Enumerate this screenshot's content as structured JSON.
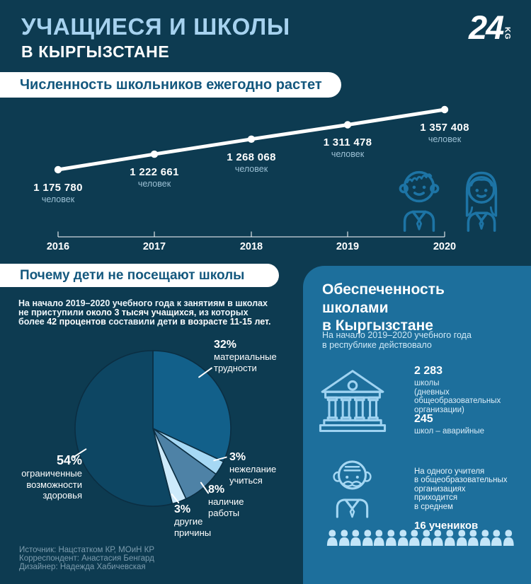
{
  "header": {
    "title": "УЧАЩИЕСЯ И ШКОЛЫ",
    "subtitle": "В КЫРГЫЗСТАНЕ",
    "logo_number": "24",
    "logo_suffix": "KG"
  },
  "growth": {
    "banner": "Численность школьников ежегодно растет"
  },
  "chart_data": [
    {
      "type": "line",
      "title": "Численность школьников ежегодно растет",
      "x": [
        "2016",
        "2017",
        "2018",
        "2019",
        "2020"
      ],
      "values": [
        1175780,
        1222661,
        1268068,
        1311478,
        1357408
      ],
      "point_labels": [
        "1 175 780",
        "1 222 661",
        "1 268 068",
        "1 311 478",
        "1 357 408"
      ],
      "unit_label": "человек",
      "line_color": "#ffffff",
      "axis_color": "rgba(255,255,255,0.8)"
    },
    {
      "type": "pie",
      "title": "Почему дети не посещают школы",
      "start": "12-oclock-clockwise",
      "slices": [
        {
          "value": 32,
          "pct_label": "32%",
          "label": "материальные трудности",
          "label_lines": "материальные\nтрудности",
          "color": "#12608a"
        },
        {
          "value": 3,
          "pct_label": "3%",
          "label": "нежелание учиться",
          "label_lines": "нежелание\nучиться",
          "color": "#a6d8f4"
        },
        {
          "value": 8,
          "pct_label": "8%",
          "label": "наличие работы",
          "label_lines": "наличие\nработы",
          "color": "#4e82a6"
        },
        {
          "value": 3,
          "pct_label": "3%",
          "label": "другие причины",
          "label_lines": "другие\nпричины",
          "color": "#cdeafb"
        },
        {
          "value": 54,
          "pct_label": "54%",
          "label": "ограниченные возможности здоровья",
          "label_lines": "ограниченные\nвозможности\nздоровья",
          "color": "#0d4663"
        }
      ],
      "stroke_color": "#0b2e42"
    }
  ],
  "reasons": {
    "banner": "Почему дети не посещают школы",
    "para": {
      "line1": "На начало 2019–2020 учебного года к занятиям в школах",
      "line2_pre": "не приступили ",
      "line2_bold": "около 3 тысяч учащихся,",
      "line2_post": " из которых",
      "line3_pre": "более ",
      "line3_bold1": "42 процентов",
      "line3_mid": " составили дети ",
      "line3_bold2": "в возрасте 11-15 лет."
    }
  },
  "provision": {
    "title": "Обеспеченность\nшколами\nв Кыргызстане",
    "subtitle": "На начало 2019–2020 учебного года\nв республике действовало",
    "stat1_value": "2 283",
    "stat1_label": "школы\n(дневных\nобщеобразовательных\nорганизации)",
    "stat2_value": "245",
    "stat2_label": "школ – аварийные",
    "teacher_text": "На одного учителя\nв общеобразовательных\nорганизациях\nприходится\nв среднем",
    "teacher_bold": "16 учеников",
    "students_count": 16
  },
  "footer": {
    "source": "Источник: Нацстатком КР, МОиН КР",
    "correspondent": "Корреспондент: Анастасия Бенгард",
    "designer": "Дизайнер: Надежда Хабичевская"
  },
  "colors": {
    "background": "#0d3b51",
    "panel": "#1d6f9c",
    "title_accent": "#a6d2ef",
    "banner_text": "#14587e",
    "unit_text": "#9cc0d4",
    "student_outline_icon": "#1d74a5",
    "panel_icon": "#9fd3f1",
    "silhouette": "#c3e5f8",
    "footer_text": "#7c9cae"
  }
}
